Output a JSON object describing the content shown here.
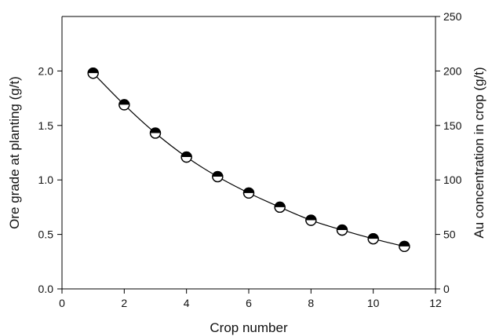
{
  "chart_data": {
    "type": "scatter",
    "title": "",
    "xlabel": "Crop number",
    "ylabel_left": "Ore grade at planting (g/t)",
    "ylabel_right": "Au concentration in crop (g/t)",
    "xlim": [
      0,
      12
    ],
    "ylim_left": [
      0.0,
      2.5
    ],
    "ylim_right": [
      0,
      250
    ],
    "x_ticks": [
      "0",
      "2",
      "4",
      "6",
      "8",
      "10",
      "12"
    ],
    "y_left_ticks": [
      "0.0",
      "0.5",
      "1.0",
      "1.5",
      "2.0"
    ],
    "y_right_ticks": [
      "0",
      "50",
      "100",
      "150",
      "200",
      "250"
    ],
    "grid": false,
    "legend": "none",
    "marker": "half-filled circle (top black, bottom white)",
    "series": [
      {
        "axis": "left",
        "x": [
          1,
          2,
          3,
          4,
          5,
          6,
          7,
          8,
          9,
          10,
          11
        ],
        "y": [
          1.98,
          1.69,
          1.43,
          1.21,
          1.03,
          0.88,
          0.75,
          0.63,
          0.54,
          0.46,
          0.39
        ]
      }
    ]
  }
}
